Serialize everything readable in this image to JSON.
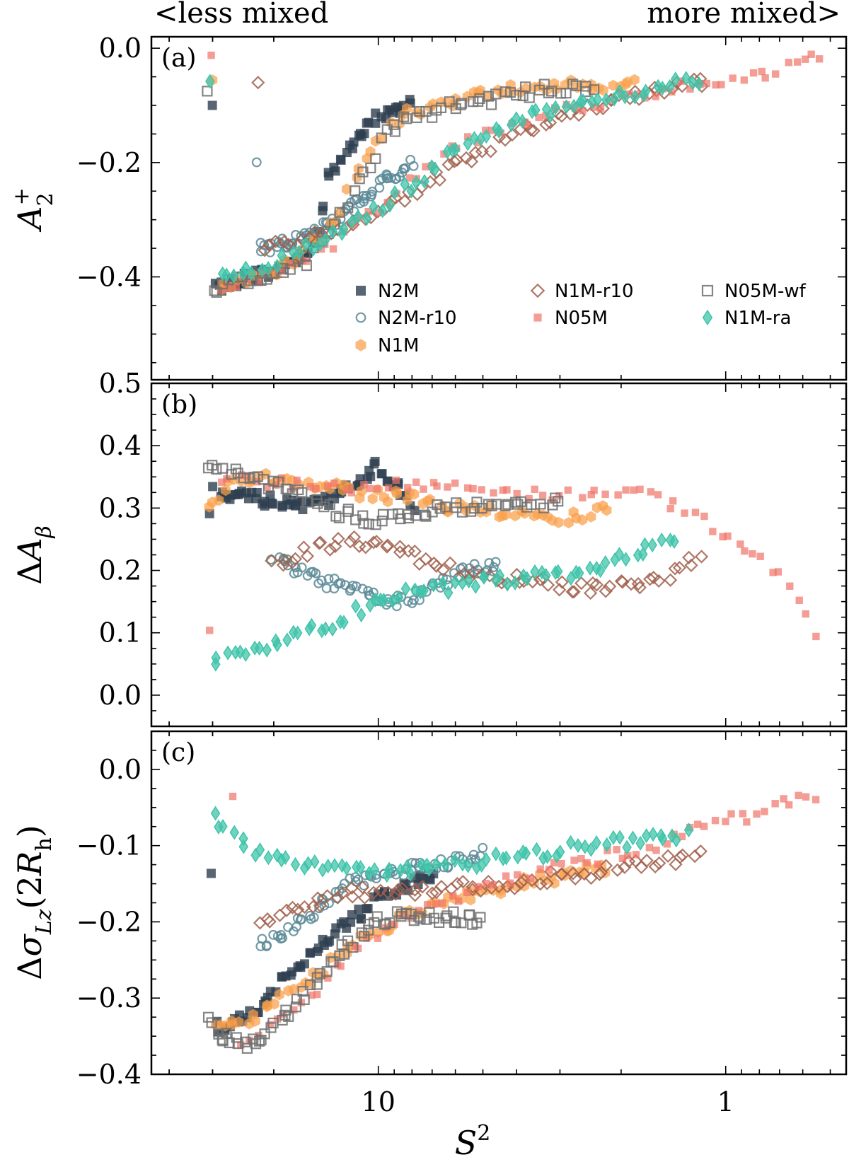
{
  "header": {
    "left_note": "<less mixed",
    "right_note": "more mixed>"
  },
  "chart_data": {
    "type": "scatter",
    "xlabel": "S^2",
    "xscale": "log",
    "x_reversed": true,
    "xlim": [
      45,
      0.45
    ],
    "x_ticks": [
      {
        "value": 10,
        "label": "10"
      },
      {
        "value": 1,
        "label": "1"
      }
    ],
    "legend_placement": "lower-right of panel (a), 3 columns",
    "series": [
      {
        "name": "N2M",
        "marker": "square-filled",
        "color": "#2e3f4f"
      },
      {
        "name": "N2M-r10",
        "marker": "circle-open",
        "color": "#5b8a96"
      },
      {
        "name": "N1M",
        "marker": "hexagon-filled",
        "color": "#f9a04a"
      },
      {
        "name": "N1M-r10",
        "marker": "diamond-open",
        "color": "#a0604c"
      },
      {
        "name": "N05M",
        "marker": "square-filled-small",
        "color": "#ef7468"
      },
      {
        "name": "N05M-wf",
        "marker": "square-open",
        "color": "#707070"
      },
      {
        "name": "N1M-ra",
        "marker": "thin-diamond",
        "color": "#3fc4aa"
      }
    ],
    "panels": [
      {
        "label": "(a)",
        "ylabel": "A_2^+",
        "ylim": [
          -0.58,
          0.02
        ],
        "y_ticks": [
          {
            "value": 0.0,
            "label": "0.0"
          },
          {
            "value": -0.2,
            "label": "−0.2"
          },
          {
            "value": -0.4,
            "label": "−0.4"
          }
        ],
        "trends": {
          "N2M": [
            [
              30,
              -0.42
            ],
            [
              25,
              -0.405
            ],
            [
              20,
              -0.39
            ],
            [
              17,
              -0.37
            ],
            [
              15,
              -0.33
            ],
            [
              14.5,
              -0.28
            ],
            [
              14,
              -0.23
            ],
            [
              13,
              -0.2
            ],
            [
              12,
              -0.17
            ],
            [
              11,
              -0.14
            ],
            [
              10,
              -0.12
            ],
            [
              9,
              -0.11
            ],
            [
              8,
              -0.09
            ]
          ],
          "N2M-r10": [
            [
              22,
              -0.35
            ],
            [
              18,
              -0.34
            ],
            [
              15,
              -0.32
            ],
            [
              12,
              -0.28
            ],
            [
              10,
              -0.24
            ],
            [
              8,
              -0.2
            ]
          ],
          "N1M": [
            [
              30,
              -0.415
            ],
            [
              22,
              -0.4
            ],
            [
              17,
              -0.37
            ],
            [
              13.5,
              -0.3
            ],
            [
              11,
              -0.2
            ],
            [
              9.5,
              -0.14
            ],
            [
              8,
              -0.11
            ],
            [
              6,
              -0.09
            ],
            [
              4,
              -0.07
            ],
            [
              2.5,
              -0.065
            ],
            [
              1.8,
              -0.06
            ]
          ],
          "N1M-r10": [
            [
              22,
              -0.35
            ],
            [
              18,
              -0.34
            ],
            [
              14,
              -0.32
            ],
            [
              11,
              -0.3
            ],
            [
              9,
              -0.27
            ],
            [
              7,
              -0.23
            ],
            [
              5,
              -0.18
            ],
            [
              4,
              -0.15
            ],
            [
              3,
              -0.12
            ],
            [
              2,
              -0.09
            ],
            [
              1.4,
              -0.07
            ],
            [
              1.15,
              -0.06
            ]
          ],
          "N05M": [
            [
              30,
              -0.42
            ],
            [
              20,
              -0.4
            ],
            [
              14,
              -0.35
            ],
            [
              10,
              -0.28
            ],
            [
              7,
              -0.2
            ],
            [
              5,
              -0.15
            ],
            [
              3,
              -0.11
            ],
            [
              2,
              -0.09
            ],
            [
              1.4,
              -0.065
            ],
            [
              1.0,
              -0.055
            ],
            [
              0.8,
              -0.05
            ],
            [
              0.6,
              -0.02
            ],
            [
              0.53,
              -0.01
            ]
          ],
          "N05M-wf": [
            [
              31,
              -0.42
            ],
            [
              22,
              -0.4
            ],
            [
              16,
              -0.37
            ],
            [
              13,
              -0.3
            ],
            [
              11,
              -0.22
            ],
            [
              9.5,
              -0.15
            ],
            [
              8,
              -0.12
            ],
            [
              6,
              -0.1
            ],
            [
              4,
              -0.08
            ],
            [
              3,
              -0.07
            ],
            [
              2.4,
              -0.065
            ]
          ],
          "N1M-ra": [
            [
              30,
              -0.395
            ],
            [
              22,
              -0.39
            ],
            [
              17,
              -0.36
            ],
            [
              13,
              -0.32
            ],
            [
              10,
              -0.28
            ],
            [
              8,
              -0.24
            ],
            [
              6,
              -0.18
            ],
            [
              4.5,
              -0.14
            ],
            [
              3.2,
              -0.11
            ],
            [
              2.2,
              -0.085
            ],
            [
              1.5,
              -0.065
            ],
            [
              1.2,
              -0.055
            ]
          ]
        }
      },
      {
        "label": "(b)",
        "ylabel": "ΔA_β",
        "ylim": [
          -0.05,
          0.5
        ],
        "y_ticks": [
          {
            "value": 0.5,
            "label": "0.5"
          },
          {
            "value": 0.4,
            "label": "0.4"
          },
          {
            "value": 0.3,
            "label": "0.3"
          },
          {
            "value": 0.2,
            "label": "0.2"
          },
          {
            "value": 0.1,
            "label": "0.1"
          },
          {
            "value": 0.0,
            "label": "0.0"
          }
        ],
        "trends": {
          "N2M": [
            [
              30,
              0.33
            ],
            [
              25,
              0.32
            ],
            [
              20,
              0.31
            ],
            [
              16,
              0.3
            ],
            [
              13,
              0.32
            ],
            [
              11,
              0.35
            ],
            [
              10,
              0.37
            ],
            [
              9,
              0.34
            ],
            [
              8,
              0.3
            ]
          ],
          "N2M-r10": [
            [
              20,
              0.22
            ],
            [
              17,
              0.2
            ],
            [
              14,
              0.18
            ],
            [
              12,
              0.17
            ],
            [
              10,
              0.155
            ],
            [
              8.5,
              0.15
            ],
            [
              7,
              0.17
            ],
            [
              5.5,
              0.2
            ],
            [
              4.5,
              0.21
            ]
          ],
          "N1M": [
            [
              31,
              0.3
            ],
            [
              27,
              0.34
            ],
            [
              22,
              0.35
            ],
            [
              17,
              0.34
            ],
            [
              13,
              0.33
            ],
            [
              10,
              0.32
            ],
            [
              8,
              0.32
            ],
            [
              6,
              0.3
            ],
            [
              4,
              0.29
            ],
            [
              3,
              0.28
            ],
            [
              2.2,
              0.3
            ]
          ],
          "N1M-r10": [
            [
              20,
              0.21
            ],
            [
              16,
              0.23
            ],
            [
              12,
              0.25
            ],
            [
              9,
              0.24
            ],
            [
              7,
              0.21
            ],
            [
              5,
              0.19
            ],
            [
              3.5,
              0.18
            ],
            [
              2.5,
              0.17
            ],
            [
              1.6,
              0.18
            ],
            [
              1.2,
              0.22
            ]
          ],
          "N05M": [
            [
              30,
              0.35
            ],
            [
              20,
              0.34
            ],
            [
              12,
              0.33
            ],
            [
              8,
              0.34
            ],
            [
              5,
              0.33
            ],
            [
              3,
              0.32
            ],
            [
              2,
              0.33
            ],
            [
              1.3,
              0.3
            ],
            [
              0.8,
              0.22
            ],
            [
              0.65,
              0.18
            ],
            [
              0.55,
              0.1
            ]
          ],
          "N05M-wf": [
            [
              31,
              0.37
            ],
            [
              24,
              0.35
            ],
            [
              18,
              0.33
            ],
            [
              14,
              0.3
            ],
            [
              11,
              0.28
            ],
            [
              8,
              0.29
            ],
            [
              6,
              0.3
            ],
            [
              4,
              0.3
            ],
            [
              3,
              0.31
            ]
          ],
          "N1M-ra": [
            [
              30,
              0.05
            ],
            [
              24,
              0.07
            ],
            [
              18,
              0.095
            ],
            [
              14,
              0.11
            ],
            [
              11,
              0.14
            ],
            [
              9,
              0.16
            ],
            [
              7,
              0.17
            ],
            [
              5,
              0.18
            ],
            [
              3.5,
              0.19
            ],
            [
              2.5,
              0.2
            ],
            [
              1.8,
              0.23
            ],
            [
              1.4,
              0.25
            ]
          ]
        }
      },
      {
        "label": "(c)",
        "ylabel": "Δσ_Lz(2R_h)",
        "ylim": [
          -0.4,
          0.05
        ],
        "y_ticks": [
          {
            "value": 0.0,
            "label": "0.0"
          },
          {
            "value": -0.1,
            "label": "−0.1"
          },
          {
            "value": -0.2,
            "label": "−0.2"
          },
          {
            "value": -0.3,
            "label": "−0.3"
          },
          {
            "value": -0.4,
            "label": "−0.4"
          }
        ],
        "trends": {
          "N2M": [
            [
              30,
              -0.34
            ],
            [
              25,
              -0.33
            ],
            [
              22,
              -0.31
            ],
            [
              19,
              -0.28
            ],
            [
              16,
              -0.25
            ],
            [
              14,
              -0.22
            ],
            [
              12,
              -0.2
            ],
            [
              10,
              -0.17
            ],
            [
              8,
              -0.15
            ],
            [
              7,
              -0.14
            ]
          ],
          "N2M-r10": [
            [
              22,
              -0.23
            ],
            [
              19,
              -0.215
            ],
            [
              16,
              -0.195
            ],
            [
              14,
              -0.17
            ],
            [
              12,
              -0.15
            ],
            [
              10,
              -0.14
            ],
            [
              8,
              -0.13
            ],
            [
              6,
              -0.12
            ],
            [
              5,
              -0.11
            ]
          ],
          "N1M": [
            [
              30,
              -0.335
            ],
            [
              24,
              -0.33
            ],
            [
              19,
              -0.3
            ],
            [
              15,
              -0.27
            ],
            [
              12,
              -0.23
            ],
            [
              10,
              -0.21
            ],
            [
              8,
              -0.19
            ],
            [
              6,
              -0.17
            ],
            [
              4,
              -0.15
            ],
            [
              3,
              -0.14
            ],
            [
              2.2,
              -0.13
            ]
          ],
          "N1M-r10": [
            [
              22,
              -0.2
            ],
            [
              19,
              -0.19
            ],
            [
              16,
              -0.18
            ],
            [
              13,
              -0.165
            ],
            [
              10,
              -0.16
            ],
            [
              8,
              -0.16
            ],
            [
              6,
              -0.155
            ],
            [
              4,
              -0.15
            ],
            [
              3,
              -0.14
            ],
            [
              2,
              -0.13
            ],
            [
              1.4,
              -0.12
            ],
            [
              1.2,
              -0.11
            ]
          ],
          "N05M": [
            [
              26,
              -0.36
            ],
            [
              20,
              -0.33
            ],
            [
              15,
              -0.29
            ],
            [
              12,
              -0.24
            ],
            [
              9,
              -0.2
            ],
            [
              6,
              -0.17
            ],
            [
              4,
              -0.14
            ],
            [
              2.5,
              -0.12
            ],
            [
              1.6,
              -0.1
            ],
            [
              1.1,
              -0.07
            ],
            [
              0.8,
              -0.06
            ],
            [
              0.6,
              -0.03
            ],
            [
              0.55,
              -0.04
            ]
          ],
          "N05M-wf": [
            [
              31,
              -0.33
            ],
            [
              27,
              -0.355
            ],
            [
              24,
              -0.36
            ],
            [
              20,
              -0.34
            ],
            [
              16,
              -0.29
            ],
            [
              13,
              -0.24
            ],
            [
              10,
              -0.2
            ],
            [
              8,
              -0.19
            ],
            [
              6,
              -0.195
            ],
            [
              5,
              -0.2
            ]
          ],
          "N1M-ra": [
            [
              30,
              -0.06
            ],
            [
              26,
              -0.09
            ],
            [
              22,
              -0.11
            ],
            [
              18,
              -0.125
            ],
            [
              14,
              -0.13
            ],
            [
              11,
              -0.135
            ],
            [
              9,
              -0.135
            ],
            [
              7,
              -0.13
            ],
            [
              5,
              -0.12
            ],
            [
              3.5,
              -0.11
            ],
            [
              2.5,
              -0.1
            ],
            [
              1.6,
              -0.09
            ],
            [
              1.3,
              -0.085
            ]
          ]
        }
      }
    ]
  }
}
